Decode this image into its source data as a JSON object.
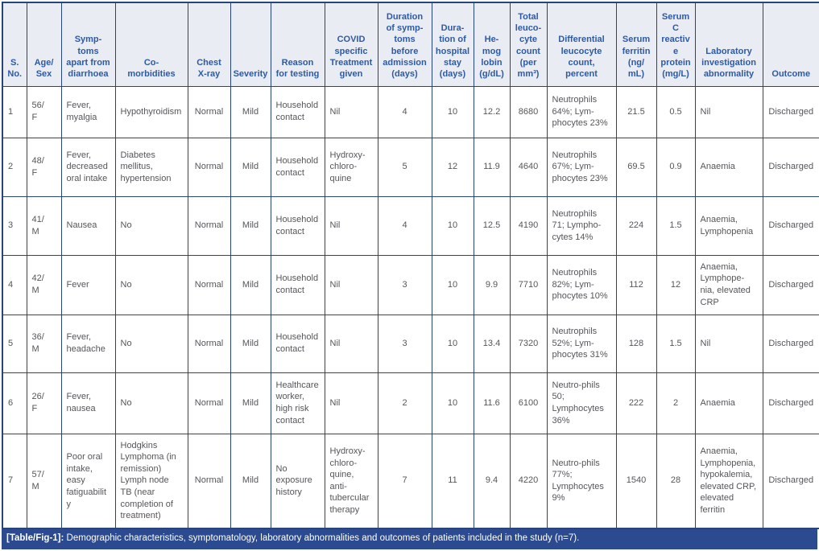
{
  "colors": {
    "border": "#29437c",
    "header_bg": "#eaecf4",
    "header_text": "#2c5aa6",
    "body_text": "#55565a",
    "caption_bg": "#2b4a8f",
    "caption_text": "#ffffff"
  },
  "table": {
    "columns": [
      {
        "id": "s-no",
        "label": "S.\nNo.",
        "align": "left"
      },
      {
        "id": "age-sex",
        "label": "Age/\nSex",
        "align": "left"
      },
      {
        "id": "symptoms",
        "label": "Symp-\ntoms\napart from\ndiarrhoea",
        "align": "left"
      },
      {
        "id": "comorbidities",
        "label": "Co-\nmorbidities",
        "align": "left"
      },
      {
        "id": "chest-xray",
        "label": "Chest\nX-ray",
        "align": "center"
      },
      {
        "id": "severity",
        "label": "Severity",
        "align": "center"
      },
      {
        "id": "reason-testing",
        "label": "Reason\nfor testing",
        "align": "left"
      },
      {
        "id": "covid-treatment",
        "label": "COVID\nspecific\nTreatment\ngiven",
        "align": "left"
      },
      {
        "id": "duration-symptoms",
        "label": "Duration\nof symp-\ntoms\nbefore\nadmission\n(days)",
        "align": "center"
      },
      {
        "id": "duration-stay",
        "label": "Dura-\ntion of\nhospital\nstay\n(days)",
        "align": "center"
      },
      {
        "id": "hemoglobin",
        "label": "He-\nmog\nlobin\n(g/dL)",
        "align": "center"
      },
      {
        "id": "tlc",
        "label": "Total\nleuco-\ncyte\ncount\n(per\nmm³)",
        "align": "center"
      },
      {
        "id": "differential",
        "label": "Differential\nleucocyte\ncount,\npercent",
        "align": "left"
      },
      {
        "id": "ferritin",
        "label": "Serum\nferritin\n(ng/\nmL)",
        "align": "center"
      },
      {
        "id": "crp",
        "label": "Serum\nC\nreactive\nprotein\n(mg/L)",
        "align": "center"
      },
      {
        "id": "lab-abnormality",
        "label": "Laboratory\ninvestigation\nabnormality",
        "align": "left"
      },
      {
        "id": "outcome",
        "label": "Outcome",
        "align": "center"
      }
    ],
    "rows": [
      [
        "1",
        "56/\nF",
        "Fever,\nmyalgia",
        "Hypothyroidism",
        "Normal",
        "Mild",
        "Household contact",
        "Nil",
        "4",
        "10",
        "12.2",
        "8680",
        "Neutrophils 64%; Lym-phocytes 23%",
        "21.5",
        "0.5",
        "Nil",
        "Discharged"
      ],
      [
        "2",
        "48/\nF",
        "Fever,\ndecreased oral intake",
        "Diabetes mellitus,\nhypertension",
        "Normal",
        "Mild",
        "Household contact",
        "Hydroxy-chloro-quine",
        "5",
        "12",
        "11.9",
        "4640",
        "Neutrophils 67%; Lym-phocytes 23%",
        "69.5",
        "0.9",
        "Anaemia",
        "Discharged"
      ],
      [
        "3",
        "41/\nM",
        "Nausea",
        "No",
        "Normal",
        "Mild",
        "Household contact",
        "Nil",
        "4",
        "10",
        "12.5",
        "4190",
        "Neutrophils 71; Lympho-cytes 14%",
        "224",
        "1.5",
        "Anaemia,\nLymphopenia",
        "Discharged"
      ],
      [
        "4",
        "42/\nM",
        "Fever",
        "No",
        "Normal",
        "Mild",
        "Household contact",
        "Nil",
        "3",
        "10",
        "9.9",
        "7710",
        "Neutrophils 82%; Lym-phocytes 10%",
        "112",
        "12",
        "Anaemia,\nLymphope-nia, elevated CRP",
        "Discharged"
      ],
      [
        "5",
        "36/\nM",
        "Fever,\nheadache",
        "No",
        "Normal",
        "Mild",
        "Household contact",
        "Nil",
        "3",
        "10",
        "13.4",
        "7320",
        "Neutrophils 52%; Lym-phocytes 31%",
        "128",
        "1.5",
        "Nil",
        "Discharged"
      ],
      [
        "6",
        "26/\nF",
        "Fever,\nnausea",
        "No",
        "Normal",
        "Mild",
        "Healthcare worker, high risk contact",
        "Nil",
        "2",
        "10",
        "11.6",
        "6100",
        "Neutro-phils 50; Lymphocytes 36%",
        "222",
        "2",
        "Anaemia",
        "Discharged"
      ],
      [
        "7",
        "57/\nM",
        "Poor oral intake,\neasy\nfatiguability",
        "Hodgkins Lymphoma (in remission)\nLymph node TB (near completion of treatment)",
        "Normal",
        "Mild",
        "No exposure history",
        "Hydroxy-chloro-quine, anti-tubercular therapy",
        "7",
        "11",
        "9.4",
        "4220",
        "Neutro-phils 77%; Lymphocytes 9%",
        "1540",
        "28",
        "Anaemia,\nLymphopenia, hypokalemia, elevated CRP, elevated ferritin",
        "Discharged"
      ]
    ],
    "caption": {
      "tag": "[Table/Fig-1]:",
      "text": " Demographic characteristics, symptomatology, laboratory abnormalities and outcomes of patients included in the study (n=7)."
    }
  }
}
